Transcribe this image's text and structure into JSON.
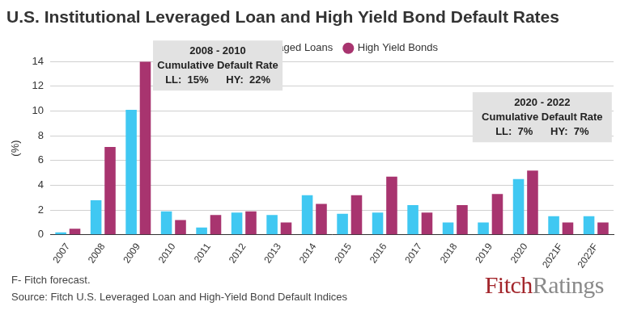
{
  "chart_data": {
    "type": "bar",
    "title": "U.S. Institutional Leveraged Loan and High Yield Bond Default Rates",
    "y_label": "(%)",
    "categories": [
      "2007",
      "2008",
      "2009",
      "2010",
      "2011",
      "2012",
      "2013",
      "2014",
      "2015",
      "2016",
      "2017",
      "2018",
      "2019",
      "2020",
      "2021F",
      "2022F"
    ],
    "series": [
      {
        "name": "Institutional Leveraged Loans",
        "color": "#40c8f2",
        "values": [
          0.2,
          2.8,
          10.1,
          1.9,
          0.6,
          1.8,
          1.6,
          3.2,
          1.7,
          1.8,
          2.4,
          1.0,
          1.0,
          4.5,
          1.5,
          1.5
        ]
      },
      {
        "name": "High Yield Bonds",
        "color": "#a8346f",
        "values": [
          0.5,
          7.1,
          14.0,
          1.2,
          1.6,
          1.9,
          1.0,
          2.5,
          3.2,
          4.7,
          1.8,
          2.4,
          3.3,
          5.2,
          1.0,
          1.0
        ]
      }
    ],
    "ylim": [
      0,
      14
    ],
    "yticks": [
      0,
      2,
      4,
      6,
      8,
      10,
      12,
      14
    ],
    "grid": true,
    "legend": "top",
    "annotations": [
      {
        "lines": [
          "2008 - 2010",
          "Cumulative Default Rate",
          "LL:  15%      HY:  22%"
        ]
      },
      {
        "lines": [
          "2020 - 2022",
          "Cumulative Default Rate",
          "LL:  7%      HY:  7%"
        ]
      }
    ],
    "notes": [
      "F- Fitch forecast.",
      "Source: Fitch U.S. Leveraged Loan and High-Yield Bond Default Indices"
    ],
    "logo": [
      "Fitch",
      "Ratings"
    ]
  }
}
